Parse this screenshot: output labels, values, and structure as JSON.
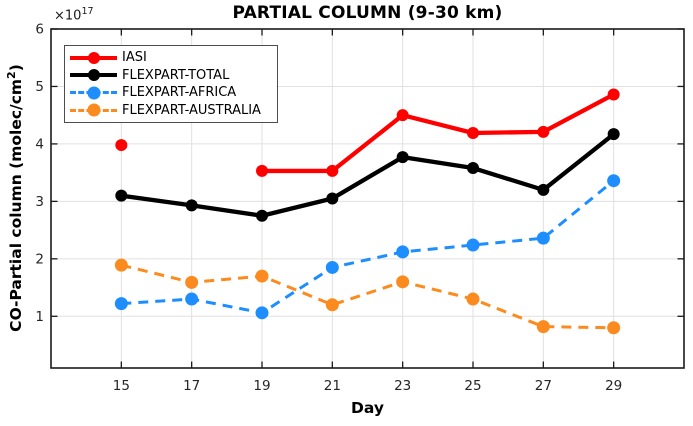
{
  "chart_data": {
    "type": "line",
    "title": "PARTIAL COLUMN (9-30 km)",
    "xlabel": "Day",
    "ylabel_parts": {
      "pre": "CO-Partial column (molec/cm",
      "sup": "2",
      "post": ")"
    },
    "y_multiplier": {
      "base": "×10",
      "exponent": "17"
    },
    "units": "1e17 molec/cm2",
    "grid": true,
    "legend_position": "top-left",
    "x": [
      15,
      17,
      19,
      21,
      23,
      25,
      27,
      29
    ],
    "xticks": [
      15,
      17,
      19,
      21,
      23,
      25,
      27,
      29
    ],
    "yticks": [
      1,
      2,
      3,
      4,
      5,
      6
    ],
    "xlim": [
      13,
      31
    ],
    "ylim": [
      0.1,
      6
    ],
    "series": [
      {
        "name": "IASI",
        "color": "#ff0000",
        "line_style": "solid",
        "line_width": 4.3,
        "marker": "circle",
        "marker_size": 12,
        "values": [
          3.98,
          null,
          3.53,
          3.53,
          4.5,
          4.19,
          4.21,
          4.86
        ]
      },
      {
        "name": "FLEXPART-TOTAL",
        "color": "#000000",
        "line_style": "solid",
        "line_width": 4.3,
        "marker": "circle",
        "marker_size": 12,
        "values": [
          3.1,
          2.93,
          2.75,
          3.05,
          3.77,
          3.58,
          3.2,
          4.17
        ]
      },
      {
        "name": "FLEXPART-AFRICA",
        "color": "#1e8eff",
        "line_style": "dashed",
        "line_width": 3,
        "marker": "circle",
        "marker_size": 13,
        "values": [
          1.22,
          1.3,
          1.06,
          1.85,
          2.12,
          2.24,
          2.36,
          3.36
        ]
      },
      {
        "name": "FLEXPART-AUSTRALIA",
        "color": "#fb8b1e",
        "line_style": "dashed",
        "line_width": 3,
        "marker": "circle",
        "marker_size": 13,
        "values": [
          1.89,
          1.59,
          1.7,
          1.2,
          1.6,
          1.3,
          0.82,
          0.8
        ]
      }
    ],
    "colors": {
      "grid": "#e0e0e0",
      "axis": "#1a1a1a",
      "tick_label": "#262626"
    }
  }
}
